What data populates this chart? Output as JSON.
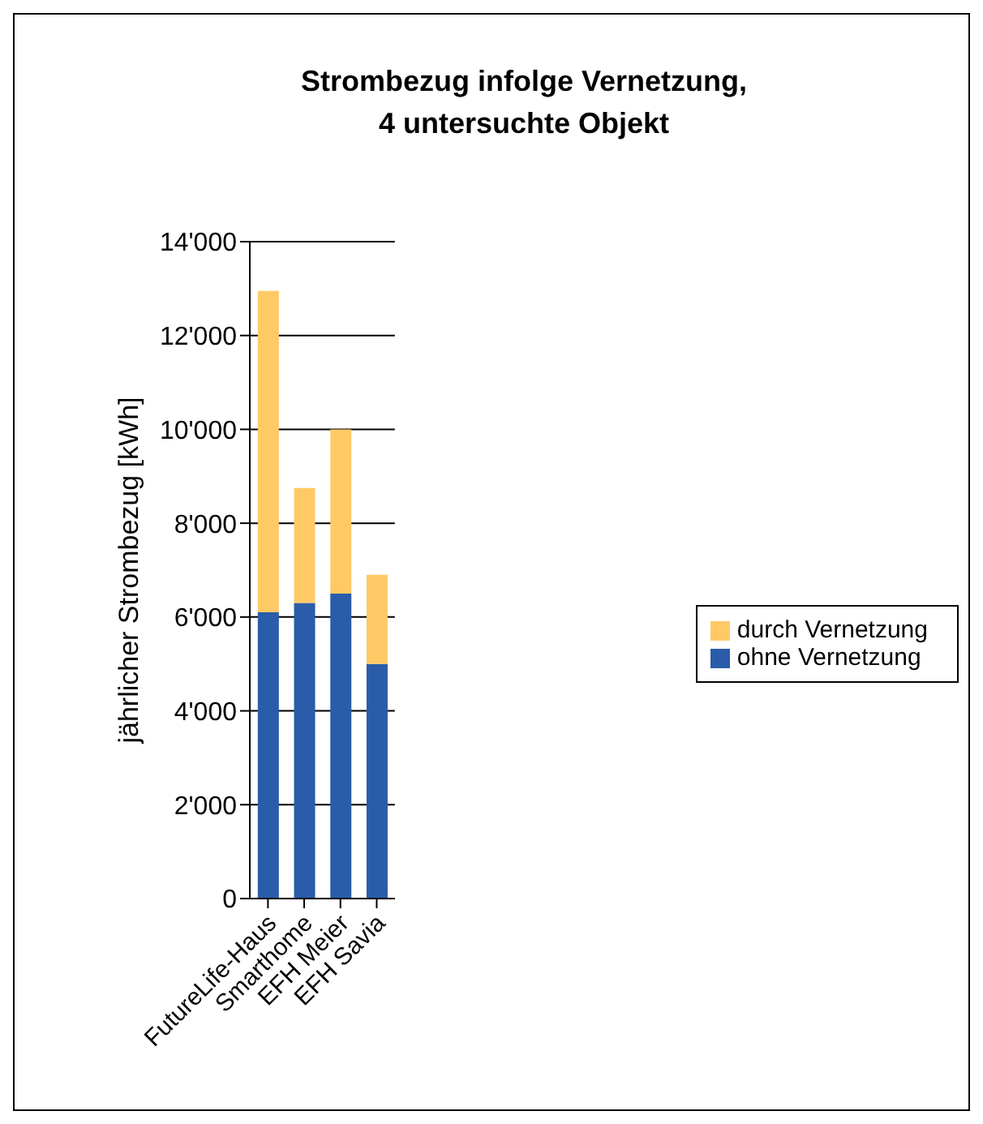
{
  "chart_data": {
    "type": "bar",
    "title": "Strombezug infolge Vernetzung,\n4 untersuchte Objekt",
    "ylabel": "jährlicher Strombezug [kWh]",
    "categories": [
      "FutureLife-Haus",
      "Smarthome",
      "EFH Meier",
      "EFH Savia"
    ],
    "stacked": true,
    "series": [
      {
        "name": "ohne Vernetzung",
        "color": "#2a5caa",
        "values": [
          6100,
          6300,
          6500,
          5000
        ]
      },
      {
        "name": "durch Vernetzung",
        "color": "#ffc966",
        "values": [
          6850,
          2450,
          3500,
          1900
        ]
      }
    ],
    "ylim": [
      0,
      14000
    ],
    "yticks": [
      0,
      {
        "value": 2000,
        "label": "2'000"
      },
      {
        "value": 4000,
        "label": "4'000"
      },
      {
        "value": 6000,
        "label": "6'000"
      },
      {
        "value": 8000,
        "label": "8'000"
      },
      {
        "value": 10000,
        "label": "10'000"
      },
      {
        "value": 12000,
        "label": "12'000"
      },
      {
        "value": 14000,
        "label": "14'000"
      }
    ],
    "grid": "y",
    "legend": "right"
  }
}
